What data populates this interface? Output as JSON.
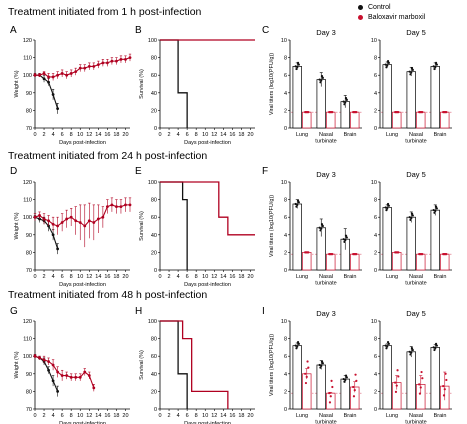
{
  "legend": {
    "items": [
      {
        "label": "Control",
        "color": "#111111"
      },
      {
        "label": "Baloxavir marboxil",
        "color": "#c8102e"
      }
    ]
  },
  "rows": [
    {
      "title": "Treatment initiated from 1 h post-infection",
      "letters": [
        "A",
        "B",
        "C"
      ]
    },
    {
      "title": "Treatment initiated from 24 h post-infection",
      "letters": [
        "D",
        "E",
        "F"
      ]
    },
    {
      "title": "Treatment initiated from 48 h post-infection",
      "letters": [
        "G",
        "H",
        "I"
      ]
    }
  ],
  "chart_data": [
    {
      "panel": "A",
      "type": "line",
      "xlabel": "Days post-infection",
      "ylabel": "Weight (%)",
      "xlim": [
        0,
        21
      ],
      "ylim": [
        70,
        120
      ],
      "xticks": [
        0,
        2,
        4,
        6,
        8,
        10,
        12,
        14,
        16,
        18,
        20
      ],
      "yticks": [
        70,
        80,
        90,
        100,
        110,
        120
      ],
      "series": [
        {
          "name": "Control",
          "color": "#111111",
          "x": [
            0,
            1,
            2,
            3,
            4,
            5
          ],
          "y": [
            100,
            100,
            98,
            96,
            89,
            81
          ],
          "err": [
            1,
            1,
            2,
            2,
            3,
            3
          ]
        },
        {
          "name": "Baloxavir marboxil",
          "color": "#b00020",
          "x": [
            0,
            1,
            2,
            3,
            4,
            5,
            6,
            7,
            8,
            9,
            10,
            11,
            12,
            13,
            14,
            15,
            16,
            17,
            18,
            19,
            20,
            21
          ],
          "y": [
            100,
            100,
            101,
            99,
            99,
            100,
            101,
            100,
            101,
            102,
            104,
            104,
            105,
            105,
            106,
            107,
            107,
            108,
            108,
            109,
            109,
            110
          ],
          "err": [
            1,
            1,
            1,
            2,
            2,
            2,
            2,
            2,
            2,
            2,
            2,
            2,
            2,
            2,
            2,
            2,
            2,
            2,
            2,
            2,
            2,
            2
          ]
        }
      ]
    },
    {
      "panel": "B",
      "type": "line",
      "step": true,
      "xlabel": "Days post-infection",
      "ylabel": "Survival (%)",
      "xlim": [
        0,
        21
      ],
      "ylim": [
        0,
        100
      ],
      "xticks": [
        0,
        2,
        4,
        6,
        8,
        10,
        12,
        14,
        16,
        18,
        20
      ],
      "yticks": [
        0,
        20,
        40,
        60,
        80,
        100
      ],
      "series": [
        {
          "name": "Control",
          "color": "#111111",
          "x": [
            0,
            4,
            5,
            6
          ],
          "y": [
            100,
            40,
            40,
            0
          ]
        },
        {
          "name": "Baloxavir marboxil",
          "color": "#b00020",
          "x": [
            0,
            21
          ],
          "y": [
            100,
            100
          ]
        }
      ]
    },
    {
      "panel": "C",
      "type": "bar",
      "ylabel": "Viral titers (log10(PFU/g))",
      "ylim": [
        0,
        10
      ],
      "yticks": [
        0,
        2,
        4,
        6,
        8,
        10
      ],
      "groups": [
        {
          "title": "Day 3",
          "categories": [
            "Lung",
            "Nasal turbinate",
            "Brain"
          ],
          "control": [
            7.0,
            5.5,
            3.0
          ],
          "control_err": [
            0.4,
            0.8,
            0.7
          ],
          "treated": [
            1.8,
            1.8,
            1.8
          ]
        },
        {
          "title": "Day 5",
          "categories": [
            "Lung",
            "Nasal turbinate",
            "Brain"
          ],
          "control": [
            7.2,
            6.4,
            7.0
          ],
          "control_err": [
            0.3,
            0.5,
            0.4
          ],
          "treated": [
            1.8,
            1.8,
            1.8
          ]
        }
      ]
    },
    {
      "panel": "D",
      "type": "line",
      "xlabel": "Days post-infection",
      "ylabel": "Weight (%)",
      "xlim": [
        0,
        21
      ],
      "ylim": [
        70,
        120
      ],
      "xticks": [
        0,
        2,
        4,
        6,
        8,
        10,
        12,
        14,
        16,
        18,
        20
      ],
      "yticks": [
        70,
        80,
        90,
        100,
        110,
        120
      ],
      "series": [
        {
          "name": "Control",
          "color": "#111111",
          "x": [
            0,
            1,
            2,
            3,
            4,
            5
          ],
          "y": [
            100,
            99,
            98,
            95,
            90,
            82
          ],
          "err": [
            1,
            2,
            2,
            3,
            3,
            3
          ]
        },
        {
          "name": "Baloxavir marboxil",
          "color": "#b00020",
          "x": [
            0,
            1,
            2,
            3,
            4,
            5,
            6,
            7,
            8,
            9,
            10,
            11,
            12,
            13,
            14,
            15,
            16,
            17,
            18,
            19,
            20,
            21
          ],
          "y": [
            100,
            101,
            99,
            98,
            96,
            95,
            97,
            99,
            100,
            98,
            97,
            95,
            98,
            97,
            99,
            100,
            106,
            107,
            106,
            106,
            107,
            107
          ],
          "err": [
            2,
            2,
            3,
            3,
            4,
            5,
            5,
            5,
            5,
            8,
            10,
            12,
            10,
            10,
            8,
            6,
            4,
            4,
            4,
            4,
            4,
            4
          ]
        }
      ]
    },
    {
      "panel": "E",
      "type": "line",
      "step": true,
      "xlabel": "Days post-infection",
      "ylabel": "Survival (%)",
      "xlim": [
        0,
        21
      ],
      "ylim": [
        0,
        100
      ],
      "xticks": [
        0,
        2,
        4,
        6,
        8,
        10,
        12,
        14,
        16,
        18,
        20
      ],
      "yticks": [
        0,
        20,
        40,
        60,
        80,
        100
      ],
      "series": [
        {
          "name": "Control",
          "color": "#111111",
          "x": [
            0,
            5,
            6
          ],
          "y": [
            100,
            80,
            0
          ]
        },
        {
          "name": "Baloxavir marboxil",
          "color": "#b00020",
          "x": [
            0,
            13,
            15,
            21
          ],
          "y": [
            100,
            60,
            40,
            40
          ]
        }
      ]
    },
    {
      "panel": "F",
      "type": "bar",
      "ylabel": "Viral titers (log10(PFU/g))",
      "ylim": [
        0,
        10
      ],
      "yticks": [
        0,
        2,
        4,
        6,
        8,
        10
      ],
      "groups": [
        {
          "title": "Day 3",
          "categories": [
            "Lung",
            "Nasal turbinate",
            "Brain"
          ],
          "control": [
            7.5,
            4.8,
            3.5
          ],
          "control_err": [
            0.5,
            1.0,
            1.2
          ],
          "treated": [
            2.0,
            1.8,
            1.8
          ]
        },
        {
          "title": "Day 5",
          "categories": [
            "Lung",
            "Nasal turbinate",
            "Brain"
          ],
          "control": [
            7.1,
            6.0,
            6.8
          ],
          "control_err": [
            0.3,
            0.6,
            0.6
          ],
          "treated": [
            2.0,
            1.8,
            1.8
          ]
        }
      ]
    },
    {
      "panel": "G",
      "type": "line",
      "xlabel": "Days post-infection",
      "ylabel": "Weight (%)",
      "xlim": [
        0,
        21
      ],
      "ylim": [
        70,
        120
      ],
      "xticks": [
        0,
        2,
        4,
        6,
        8,
        10,
        12,
        14,
        16,
        18,
        20
      ],
      "yticks": [
        70,
        80,
        90,
        100,
        110,
        120
      ],
      "series": [
        {
          "name": "Control",
          "color": "#111111",
          "x": [
            0,
            1,
            2,
            3,
            4,
            5
          ],
          "y": [
            100,
            99,
            97,
            92,
            86,
            80
          ],
          "err": [
            1,
            1,
            2,
            2,
            3,
            3
          ]
        },
        {
          "name": "Baloxavir marboxil",
          "color": "#b00020",
          "x": [
            0,
            1,
            2,
            3,
            4,
            5,
            6,
            7,
            8,
            9,
            10,
            11,
            12,
            13
          ],
          "y": [
            100,
            99,
            98,
            97,
            95,
            91,
            89,
            89,
            88,
            88,
            88,
            91,
            89,
            82
          ],
          "err": [
            1,
            1,
            2,
            2,
            3,
            3,
            3,
            2,
            2,
            2,
            2,
            2,
            2,
            2
          ]
        }
      ]
    },
    {
      "panel": "H",
      "type": "line",
      "step": true,
      "xlabel": "Days post-infection",
      "ylabel": "Survival (%)",
      "xlim": [
        0,
        21
      ],
      "ylim": [
        0,
        100
      ],
      "xticks": [
        0,
        2,
        4,
        6,
        8,
        10,
        12,
        14,
        16,
        18,
        20
      ],
      "yticks": [
        0,
        20,
        40,
        60,
        80,
        100
      ],
      "series": [
        {
          "name": "Control",
          "color": "#111111",
          "x": [
            0,
            4,
            5,
            6
          ],
          "y": [
            100,
            40,
            40,
            0
          ]
        },
        {
          "name": "Baloxavir marboxil",
          "color": "#b00020",
          "x": [
            0,
            5,
            6,
            7,
            15
          ],
          "y": [
            100,
            80,
            80,
            20,
            0
          ]
        }
      ]
    },
    {
      "panel": "I",
      "type": "bar",
      "ylabel": "Viral titers (log10(PFU/g))",
      "ylim": [
        0,
        10
      ],
      "yticks": [
        0,
        2,
        4,
        6,
        8,
        10
      ],
      "groups": [
        {
          "title": "Day 3",
          "categories": [
            "Lung",
            "Nasal turbinate",
            "Brain"
          ],
          "control": [
            7.2,
            5.0,
            3.4
          ],
          "control_err": [
            0.3,
            0.5,
            0.4
          ],
          "treated": [
            4.0,
            1.8,
            2.5
          ],
          "treated_err": [
            0.6,
            0.1,
            0.6
          ]
        },
        {
          "title": "Day 5",
          "categories": [
            "Lung",
            "Nasal turbinate",
            "Brain"
          ],
          "control": [
            7.2,
            6.5,
            7.0
          ],
          "control_err": [
            0.2,
            0.6,
            0.3
          ],
          "treated": [
            3.0,
            2.8,
            2.6
          ],
          "treated_err": [
            0.8,
            1.0,
            1.6
          ]
        }
      ]
    }
  ]
}
